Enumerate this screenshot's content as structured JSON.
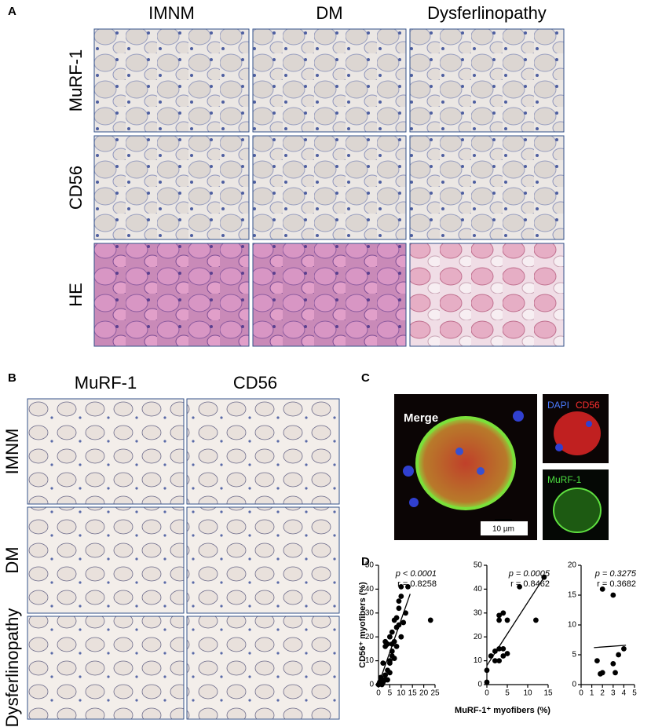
{
  "panel_a": {
    "label": "A",
    "columns": [
      "IMNM",
      "DM",
      "Dysferlinopathy"
    ],
    "rows": [
      "MuRF-1",
      "CD56",
      "HE"
    ]
  },
  "panel_b": {
    "label": "B",
    "columns": [
      "MuRF-1",
      "CD56"
    ],
    "rows": [
      "IMNM",
      "DM",
      "Dysferlinopathy"
    ]
  },
  "panel_c": {
    "label": "C",
    "merge": "Merge",
    "dapi": "DAPI",
    "cd56": "CD56",
    "murf": "MuRF-1",
    "scale": "10 µm"
  },
  "panel_d": {
    "label": "D"
  },
  "chart_data": [
    {
      "type": "scatter",
      "ylabel": "CD56⁺ myofibers (%)",
      "annotations": [
        "p < 0.0001",
        "r = 0.8258"
      ],
      "color": "#000000",
      "x": [
        1,
        0.5,
        1,
        2,
        0,
        1.5,
        3,
        2,
        3,
        4,
        4,
        5,
        5,
        6,
        6,
        4,
        5,
        3,
        3,
        6,
        7,
        7,
        8,
        8,
        9,
        9,
        10,
        10,
        13,
        12,
        11,
        23,
        5,
        6,
        7,
        2,
        8,
        9,
        10
      ],
      "y": [
        2,
        1,
        3,
        1,
        0,
        0,
        2,
        2,
        4,
        2,
        6,
        5,
        9,
        12,
        17,
        17,
        20,
        16,
        18,
        22,
        18,
        27,
        24,
        28,
        32,
        35,
        37,
        41,
        41,
        30,
        26,
        27,
        10,
        14,
        11,
        9,
        16,
        25,
        20
      ],
      "fit_line": {
        "x": [
          0,
          14
        ],
        "y": [
          0,
          38
        ]
      },
      "xlim": [
        0,
        25
      ],
      "xticks": [
        0,
        5,
        10,
        15,
        20,
        25
      ],
      "ylim": [
        0,
        50
      ],
      "yticks": [
        0,
        10,
        20,
        30,
        40,
        50
      ]
    },
    {
      "type": "scatter",
      "xlabel": "MuRF-1⁺ myofibers (%)",
      "annotations": [
        "p = 0.0005",
        "r = 0.8462"
      ],
      "color": "#000000",
      "x": [
        0,
        0,
        1,
        2,
        3,
        3,
        4,
        4,
        3,
        3,
        4,
        5,
        5,
        8,
        12,
        14,
        2
      ],
      "y": [
        1,
        6,
        12,
        14,
        15,
        10,
        12,
        15,
        27,
        29,
        30,
        27,
        13,
        41,
        27,
        45,
        10
      ],
      "fit_line": {
        "x": [
          0,
          14
        ],
        "y": [
          8,
          45
        ]
      },
      "xlim": [
        0,
        15
      ],
      "xticks": [
        0,
        5,
        10,
        15
      ],
      "ylim": [
        0,
        50
      ],
      "yticks": [
        0,
        10,
        20,
        30,
        40,
        50
      ]
    },
    {
      "type": "scatter",
      "annotations": [
        "p = 0.3275",
        "r = 0.3682"
      ],
      "color": "#000000",
      "x": [
        1.5,
        2,
        2,
        3,
        3,
        3.2,
        3.5,
        4,
        1.8
      ],
      "y": [
        4,
        16,
        2,
        15,
        3.5,
        2,
        5,
        6,
        1.8
      ],
      "fit_line": {
        "x": [
          1.2,
          4.2
        ],
        "y": [
          6.2,
          6.6
        ]
      },
      "xlim": [
        0,
        5
      ],
      "xticks": [
        0,
        1,
        2,
        3,
        4,
        5
      ],
      "ylim": [
        0,
        20
      ],
      "yticks": [
        0,
        5,
        10,
        15,
        20
      ]
    }
  ]
}
